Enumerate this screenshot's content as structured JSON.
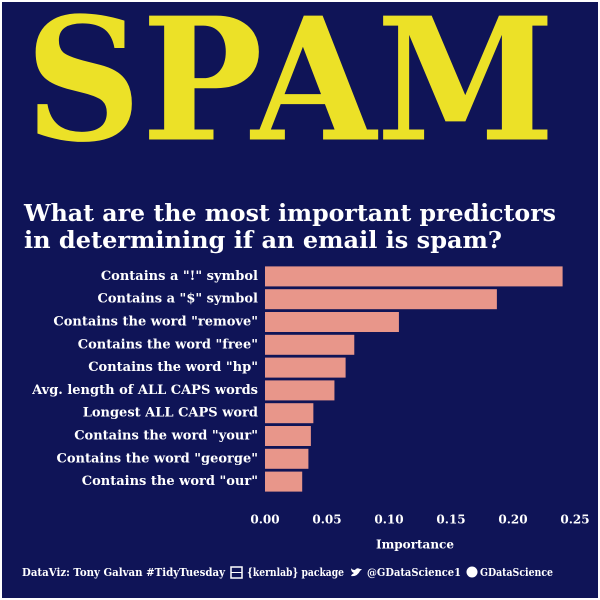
{
  "chart_data": {
    "type": "bar",
    "orientation": "horizontal",
    "title": "SPAM",
    "subtitle": [
      "What are the most important predictors",
      "in determining if an email is spam?"
    ],
    "categories": [
      "Contains a \"!\" symbol",
      "Contains a \"$\" symbol",
      "Contains the word \"remove\"",
      "Contains the word \"free\"",
      "Contains the word \"hp\"",
      "Avg. length of ALL CAPS words",
      "Longest ALL CAPS word",
      "Contains the word \"your\"",
      "Contains the word \"george\"",
      "Contains the word \"our\""
    ],
    "values": [
      0.24,
      0.187,
      0.108,
      0.072,
      0.065,
      0.056,
      0.039,
      0.037,
      0.035,
      0.03
    ],
    "color": "#e8968a",
    "xlabel": "Importance",
    "xlim": [
      0,
      0.25
    ],
    "xticks": [
      {
        "value": 0,
        "label": "0.00"
      },
      {
        "value": 0.05,
        "label": "0.05"
      },
      {
        "value": 0.1,
        "label": "0.10"
      },
      {
        "value": 0.15,
        "label": "0.15"
      },
      {
        "value": 0.2,
        "label": "0.20"
      },
      {
        "value": 0.25,
        "label": "0.25"
      }
    ],
    "grid": false,
    "footer": [
      "DataViz: Tony Galvan #TidyTuesday",
      "{kernlab} package",
      "@GDataScience1",
      "GDataScience"
    ]
  }
}
